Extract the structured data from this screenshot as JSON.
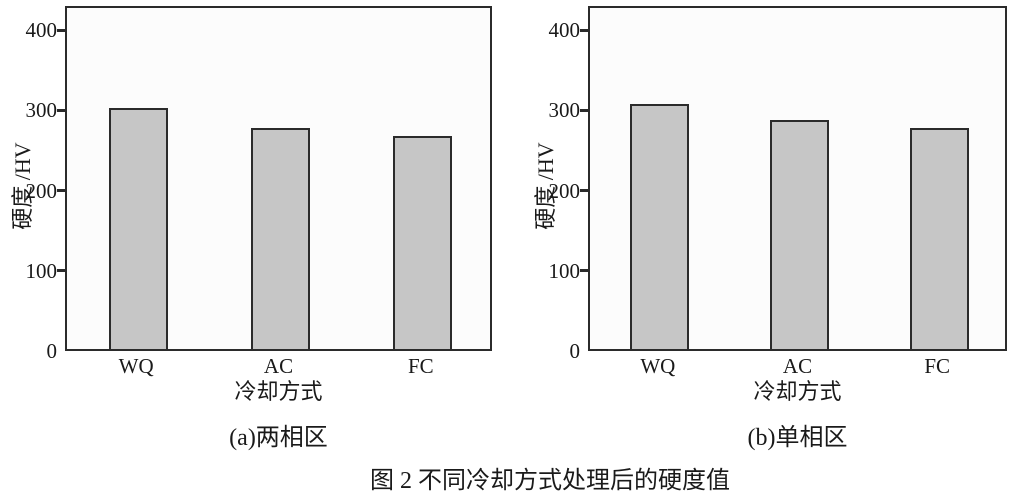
{
  "figure": {
    "caption": "图 2 不同冷却方式处理后的硬度值"
  },
  "colors": {
    "axis": "#2b2b2b",
    "bar_fill": "#c6c6c6",
    "bar_border": "#2b2b2b",
    "text": "#1a1a1a",
    "plot_bg": "#fcfcfc"
  },
  "chart_data": [
    {
      "type": "bar",
      "title": "(a)两相区",
      "categories": [
        "WQ",
        "AC",
        "FC"
      ],
      "values": [
        300,
        276,
        266
      ],
      "xlabel": "冷却方式",
      "ylabel": "硬度 /HV",
      "ylim": [
        0,
        430
      ],
      "yticks": [
        0,
        100,
        200,
        300,
        400
      ],
      "grid": false,
      "legend": "none",
      "bar_color": "#c6c6c6"
    },
    {
      "type": "bar",
      "title": "(b)单相区",
      "categories": [
        "WQ",
        "AC",
        "FC"
      ],
      "values": [
        306,
        285,
        275
      ],
      "xlabel": "冷却方式",
      "ylabel": "硬度 /HV",
      "ylim": [
        0,
        430
      ],
      "yticks": [
        0,
        100,
        200,
        300,
        400
      ],
      "grid": false,
      "legend": "none",
      "bar_color": "#c6c6c6"
    }
  ]
}
